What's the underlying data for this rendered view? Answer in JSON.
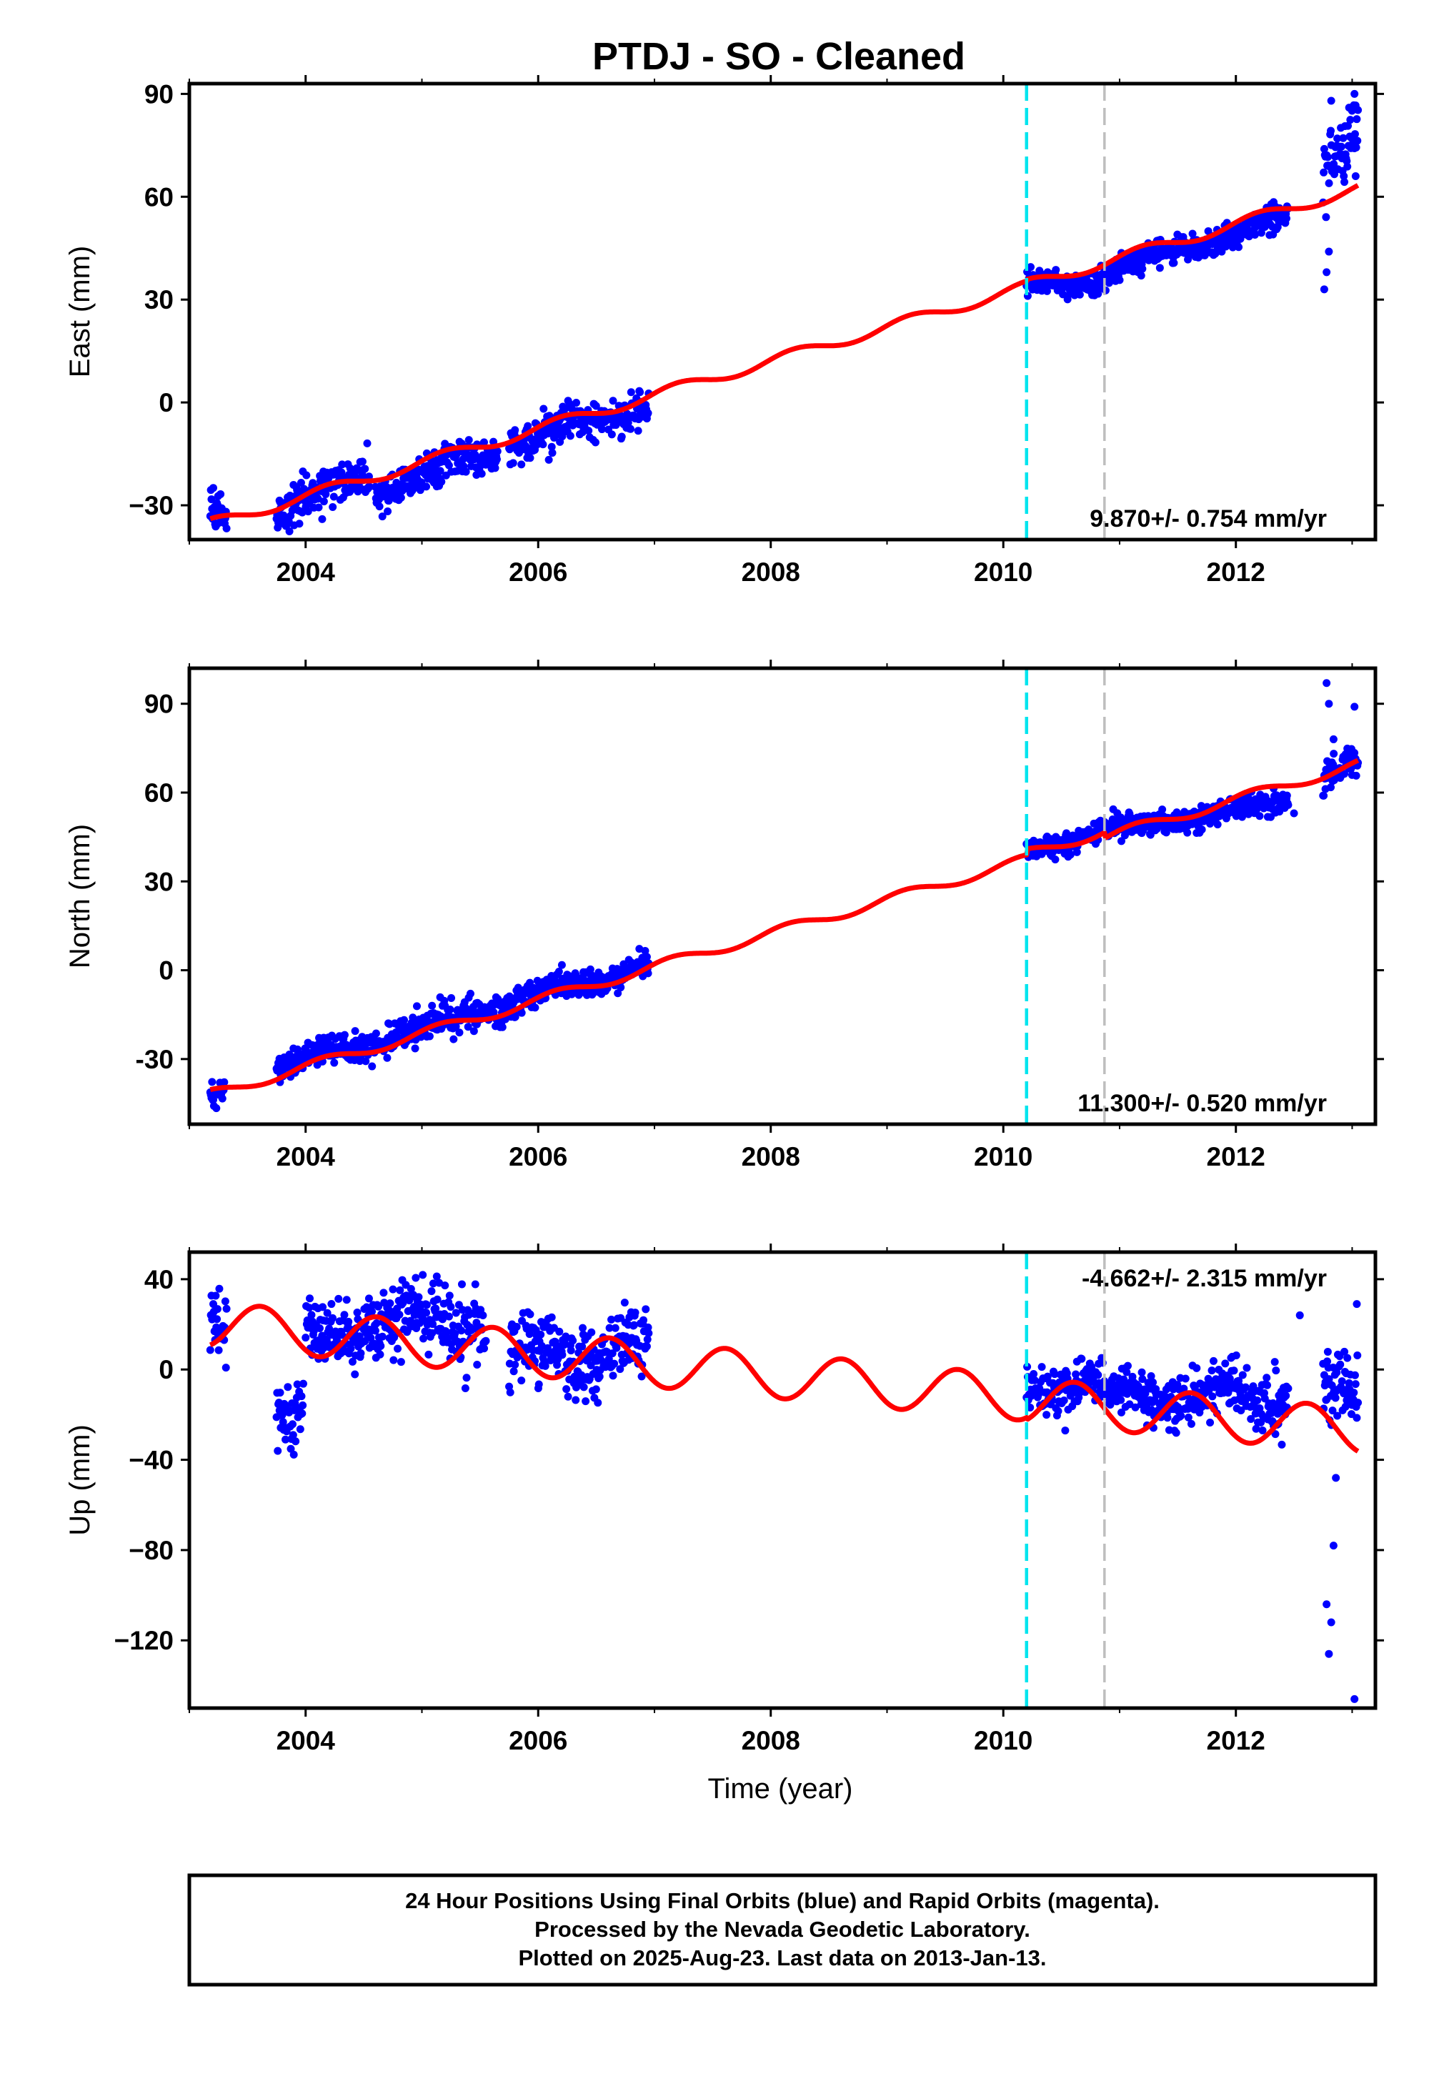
{
  "title": "PTDJ  - SO - Cleaned",
  "x_axis_label": "Time (year)",
  "footer": {
    "line1": "24 Hour Positions Using Final Orbits (blue) and Rapid Orbits (magenta).",
    "line2": "Processed by the Nevada Geodetic Laboratory.",
    "line3": "Plotted on 2025-Aug-23. Last data on 2013-Jan-13."
  },
  "colors": {
    "data_points": "#0000ff",
    "model_fit": "#ff0000",
    "equipment_change_line": "#00e5ee",
    "other_event_line": "#bebebe",
    "frame": "#000000"
  },
  "chart_data": [
    {
      "type": "scatter",
      "component": "east",
      "ylabel": "East (mm)",
      "xlim": [
        2003.0,
        2013.2
      ],
      "ylim": [
        -40,
        93
      ],
      "xticks": [
        2004,
        2006,
        2008,
        2010,
        2012
      ],
      "xtick_labels": [
        "2004",
        "2006",
        "2008",
        "2010",
        "2012"
      ],
      "yticks": [
        -30,
        0,
        30,
        60,
        90
      ],
      "ytick_labels": [
        "−30",
        "0",
        "30",
        "60",
        "90"
      ],
      "rate_label": "9.870+/- 0.754 mm/yr",
      "rate_position": "bottom-right",
      "event_lines": [
        {
          "x": 2010.2,
          "kind": "equipment_change"
        },
        {
          "x": 2010.87,
          "kind": "other"
        }
      ],
      "data_segments": [
        {
          "x0": 2003.18,
          "x1": 2003.32,
          "y0": -31,
          "y1": -34,
          "scatter": 3
        },
        {
          "x0": 2003.75,
          "x1": 2004.55,
          "y0": -31,
          "y1": -21,
          "scatter": 3
        },
        {
          "x0": 2004.6,
          "x1": 2005.65,
          "y0": -25,
          "y1": -15,
          "scatter": 3
        },
        {
          "x0": 2005.75,
          "x1": 2006.95,
          "y0": -12,
          "y1": 0,
          "scatter": 3
        },
        {
          "x0": 2010.2,
          "x1": 2010.87,
          "y0": 34,
          "y1": 36,
          "scatter": 2
        },
        {
          "x0": 2010.88,
          "x1": 2012.45,
          "y0": 38,
          "y1": 54,
          "scatter": 2
        },
        {
          "x0": 2012.75,
          "x1": 2013.05,
          "y0": 72,
          "y1": 78,
          "scatter": 6
        }
      ],
      "outliers": [
        [
          2012.76,
          33
        ],
        [
          2012.78,
          38
        ],
        [
          2012.8,
          44
        ],
        [
          2012.82,
          88
        ],
        [
          2013.02,
          90
        ],
        [
          2013.03,
          66
        ]
      ],
      "model": {
        "start": 2003.18,
        "end": 2013.05,
        "t0": 2003.18,
        "y0": -35.5,
        "rate": 9.87,
        "annual_amp": 1.6,
        "annual_phase": 0.3,
        "offsets": [
          [
            2010.2,
            0.5
          ]
        ]
      }
    },
    {
      "type": "scatter",
      "component": "north",
      "ylabel": "North (mm)",
      "xlim": [
        2003.0,
        2013.2
      ],
      "ylim": [
        -52,
        102
      ],
      "xticks": [
        2004,
        2006,
        2008,
        2010,
        2012
      ],
      "xtick_labels": [
        "2004",
        "2006",
        "2008",
        "2010",
        "2012"
      ],
      "yticks": [
        -30,
        0,
        30,
        60,
        90
      ],
      "ytick_labels": [
        "-30",
        "0",
        "30",
        "60",
        "90"
      ],
      "rate_label": "11.300+/- 0.520 mm/yr",
      "rate_position": "bottom-right",
      "event_lines": [
        {
          "x": 2010.2,
          "kind": "equipment_change"
        },
        {
          "x": 2010.87,
          "kind": "other"
        }
      ],
      "data_segments": [
        {
          "x0": 2003.18,
          "x1": 2003.3,
          "y0": -45,
          "y1": -40,
          "scatter": 2
        },
        {
          "x0": 2003.75,
          "x1": 2006.95,
          "y0": -33,
          "y1": 2,
          "scatter": 2.5
        },
        {
          "x0": 2010.2,
          "x1": 2010.87,
          "y0": 40,
          "y1": 48,
          "scatter": 2
        },
        {
          "x0": 2010.88,
          "x1": 2012.45,
          "y0": 47,
          "y1": 57,
          "scatter": 2
        },
        {
          "x0": 2012.75,
          "x1": 2013.05,
          "y0": 66,
          "y1": 69,
          "scatter": 3
        }
      ],
      "outliers": [
        [
          2012.78,
          97
        ],
        [
          2012.8,
          90
        ],
        [
          2012.84,
          78
        ],
        [
          2013.02,
          89
        ],
        [
          2012.5,
          53
        ]
      ],
      "model": {
        "start": 2003.18,
        "end": 2013.05,
        "t0": 2003.18,
        "y0": -42,
        "rate": 11.3,
        "annual_amp": 1.7,
        "annual_phase": 0.6,
        "offsets": [
          [
            2010.2,
            2.0
          ],
          [
            2010.87,
            -2.0
          ]
        ]
      }
    },
    {
      "type": "scatter",
      "component": "up",
      "ylabel": "Up (mm)",
      "xlim": [
        2003.0,
        2013.2
      ],
      "ylim": [
        -150,
        52
      ],
      "xticks": [
        2004,
        2006,
        2008,
        2010,
        2012
      ],
      "xtick_labels": [
        "2004",
        "2006",
        "2008",
        "2010",
        "2012"
      ],
      "yticks": [
        -120,
        -80,
        -40,
        0,
        40
      ],
      "ytick_labels": [
        "−120",
        "−80",
        "−40",
        "0",
        "40"
      ],
      "rate_label": "-4.662+/- 2.315 mm/yr",
      "rate_position": "top-right",
      "event_lines": [
        {
          "x": 2010.2,
          "kind": "equipment_change"
        },
        {
          "x": 2010.87,
          "kind": "other"
        }
      ],
      "data_segments": [
        {
          "x0": 2003.18,
          "x1": 2003.32,
          "y0": 22,
          "y1": 25,
          "scatter": 9
        },
        {
          "x0": 2003.75,
          "x1": 2003.98,
          "y0": -20,
          "y1": -24,
          "scatter": 8
        },
        {
          "x0": 2004.0,
          "x1": 2004.55,
          "y0": 14,
          "y1": 22,
          "scatter": 7
        },
        {
          "x0": 2004.55,
          "x1": 2005.55,
          "y0": 20,
          "y1": 22,
          "scatter": 8
        },
        {
          "x0": 2005.75,
          "x1": 2006.95,
          "y0": 5,
          "y1": 8,
          "scatter": 8
        },
        {
          "x0": 2010.2,
          "x1": 2010.87,
          "y0": -8,
          "y1": -6,
          "scatter": 5
        },
        {
          "x0": 2010.88,
          "x1": 2012.45,
          "y0": -12,
          "y1": -12,
          "scatter": 6
        },
        {
          "x0": 2012.75,
          "x1": 2013.05,
          "y0": -8,
          "y1": -12,
          "scatter": 8
        }
      ],
      "outliers": [
        [
          2012.78,
          -104
        ],
        [
          2012.8,
          -126
        ],
        [
          2012.82,
          -112
        ],
        [
          2012.84,
          -78
        ],
        [
          2012.86,
          -48
        ],
        [
          2013.02,
          -146
        ],
        [
          2013.04,
          29
        ],
        [
          2012.55,
          24
        ]
      ],
      "model": {
        "start": 2003.18,
        "end": 2013.05,
        "t0": 2003.18,
        "y0": 20,
        "rate": -4.662,
        "annual_amp": 10,
        "annual_phase": 4.0,
        "offsets": [
          [
            2010.2,
            -1.0
          ]
        ]
      }
    }
  ]
}
